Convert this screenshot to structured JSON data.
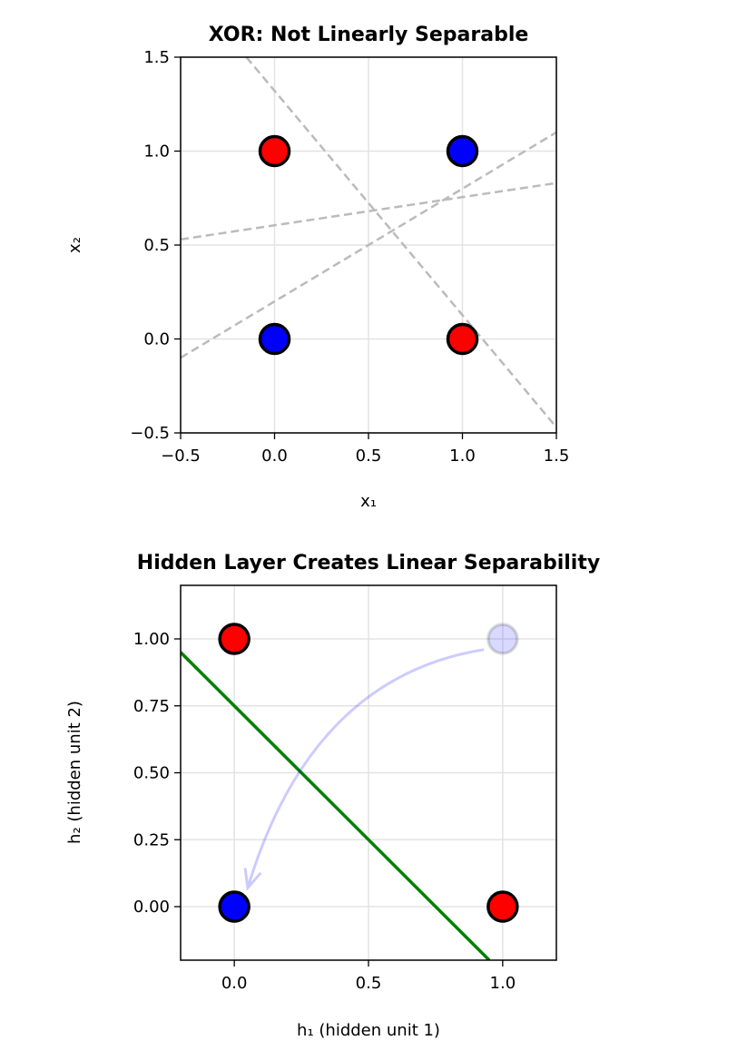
{
  "chart_data": [
    {
      "type": "scatter",
      "title": "XOR: Not Linearly Separable",
      "xlabel": "x₁",
      "ylabel": "x₂",
      "xlim": [
        -0.5,
        1.5
      ],
      "ylim": [
        -0.5,
        1.5
      ],
      "xticks": [
        -0.5,
        0.0,
        0.5,
        1.0,
        1.5
      ],
      "xtick_labels": [
        "−0.5",
        "0.0",
        "0.5",
        "1.0",
        "1.5"
      ],
      "yticks": [
        -0.5,
        0.0,
        0.5,
        1.0,
        1.5
      ],
      "ytick_labels": [
        "−0.5",
        "0.0",
        "0.5",
        "1.0",
        "1.5"
      ],
      "grid": true,
      "points": [
        {
          "x": 0,
          "y": 0,
          "color": "#0000ff"
        },
        {
          "x": 0,
          "y": 1,
          "color": "#ff0000"
        },
        {
          "x": 1,
          "y": 0,
          "color": "#ff0000"
        },
        {
          "x": 1,
          "y": 1,
          "color": "#0000ff"
        }
      ],
      "dashed_lines": [
        {
          "x": [
            -0.15,
            1.5
          ],
          "y": [
            1.5,
            -0.47
          ],
          "color": "#bbbbbb"
        },
        {
          "x": [
            -0.5,
            1.5
          ],
          "y": [
            -0.1,
            1.1
          ],
          "color": "#bbbbbb"
        },
        {
          "x": [
            -0.5,
            1.5
          ],
          "y": [
            0.53,
            0.83
          ],
          "color": "#bbbbbb"
        }
      ]
    },
    {
      "type": "scatter",
      "title": "Hidden Layer Creates Linear Separability",
      "xlabel": "h₁ (hidden unit 1)",
      "ylabel": "h₂ (hidden unit 2)",
      "xlim": [
        -0.2,
        1.2
      ],
      "ylim": [
        -0.2,
        1.2
      ],
      "xticks": [
        0.0,
        0.5,
        1.0
      ],
      "xtick_labels": [
        "0.0",
        "0.5",
        "1.0"
      ],
      "yticks": [
        0.0,
        0.25,
        0.5,
        0.75,
        1.0
      ],
      "ytick_labels": [
        "0.00",
        "0.25",
        "0.50",
        "0.75",
        "1.00"
      ],
      "grid": true,
      "points": [
        {
          "x": 0,
          "y": 0,
          "color": "#0000ff"
        },
        {
          "x": 0,
          "y": 1,
          "color": "#ff0000"
        },
        {
          "x": 1,
          "y": 0,
          "color": "#ff0000"
        }
      ],
      "ghost_point": {
        "x": 1,
        "y": 1,
        "color": "#0000ff",
        "opacity": 0.15
      },
      "arrow": {
        "from": [
          0.93,
          0.96
        ],
        "to": [
          0.05,
          0.07
        ],
        "color": "#0000ff",
        "opacity": 0.2
      },
      "boundary_line": {
        "x": [
          -0.2,
          0.95
        ],
        "y": [
          0.95,
          -0.2
        ],
        "color": "#008000"
      }
    }
  ]
}
